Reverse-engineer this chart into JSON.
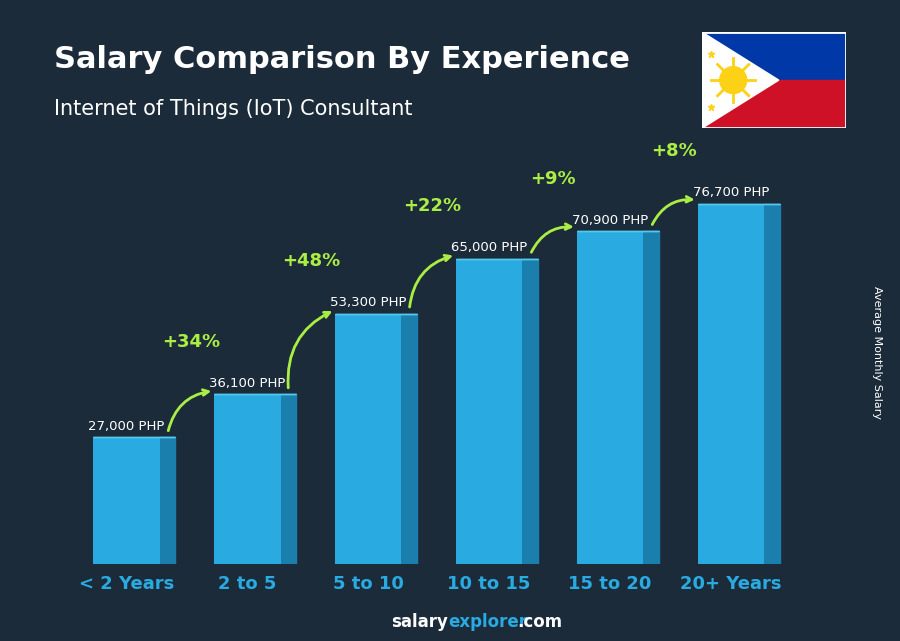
{
  "title": "Salary Comparison By Experience",
  "subtitle": "Internet of Things (IoT) Consultant",
  "categories": [
    "< 2 Years",
    "2 to 5",
    "5 to 10",
    "10 to 15",
    "15 to 20",
    "20+ Years"
  ],
  "values": [
    27000,
    36100,
    53300,
    65000,
    70900,
    76700
  ],
  "value_labels": [
    "27,000 PHP",
    "36,100 PHP",
    "53,300 PHP",
    "65,000 PHP",
    "70,900 PHP",
    "76,700 PHP"
  ],
  "pct_changes": [
    null,
    "+34%",
    "+48%",
    "+22%",
    "+9%",
    "+8%"
  ],
  "bar_color_face": "#29ABE2",
  "bar_color_side": "#1A7FAD",
  "bar_color_top": "#55C8EE",
  "bg_color": "#1C2B3A",
  "title_color": "#FFFFFF",
  "subtitle_color": "#FFFFFF",
  "value_label_color": "#FFFFFF",
  "pct_color": "#AAEE44",
  "xlabel_color": "#29ABE2",
  "ylabel_text": "Average Monthly Salary",
  "ylim": [
    0,
    90000
  ],
  "bar_width": 0.55,
  "bar_depth": 0.13
}
